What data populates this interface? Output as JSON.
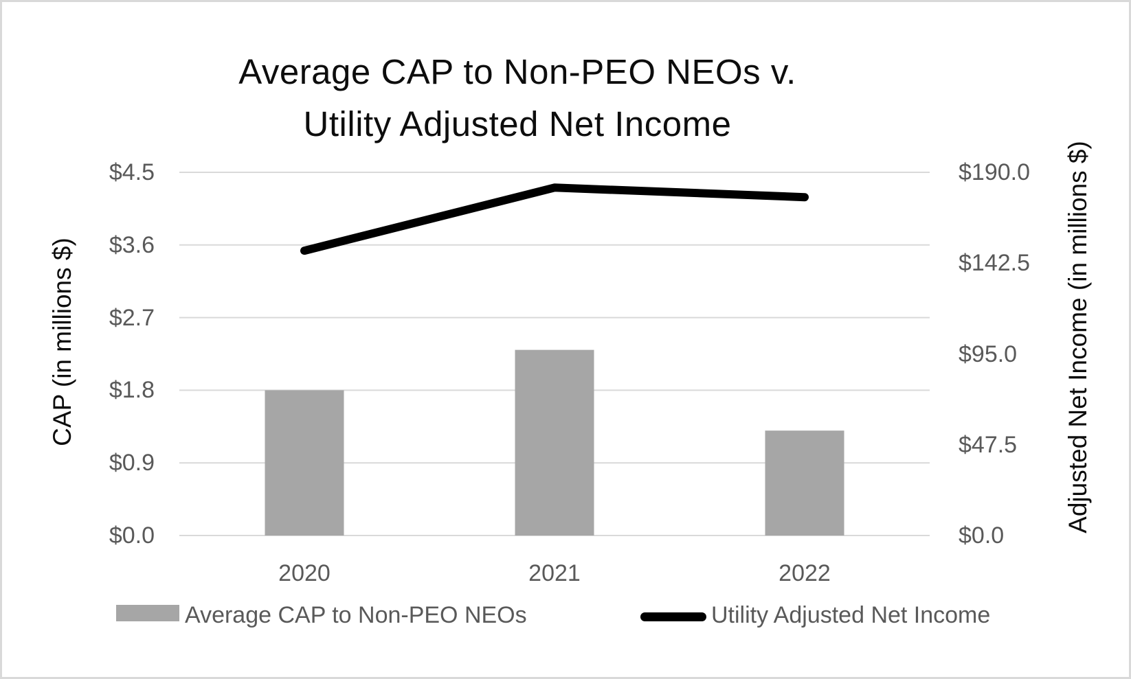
{
  "title": {
    "line1": "Average CAP to Non-PEO NEOs v.",
    "line2": "Utility Adjusted Net Income"
  },
  "chart_data": {
    "type": "bar",
    "subtype": "combo-bar-line-dual-axis",
    "title": "Average CAP to Non-PEO NEOs v. Utility Adjusted Net Income",
    "categories": [
      "2020",
      "2021",
      "2022"
    ],
    "series": [
      {
        "name": "Average CAP to Non-PEO NEOs",
        "type": "bar",
        "axis": "left",
        "values": [
          1.8,
          2.3,
          1.3
        ]
      },
      {
        "name": "Utility Adjusted Net Income",
        "type": "line",
        "axis": "right",
        "values": [
          149.0,
          182.0,
          177.0
        ]
      }
    ],
    "left_axis": {
      "label": "CAP (in millions $)",
      "tick_labels": [
        "$0.0",
        "$0.9",
        "$1.8",
        "$2.7",
        "$3.6",
        "$4.5"
      ],
      "tick_values": [
        0,
        0.9,
        1.8,
        2.7,
        3.6,
        4.5
      ],
      "range": [
        0,
        4.5
      ]
    },
    "right_axis": {
      "label": "Adjusted Net Income (in millions $)",
      "tick_labels": [
        "$0.0",
        "$47.5",
        "$95.0",
        "$142.5",
        "$190.0"
      ],
      "tick_values": [
        0,
        47.5,
        95,
        142.5,
        190
      ],
      "range": [
        0,
        190
      ]
    },
    "grid": true,
    "legend_position": "bottom"
  },
  "legend": {
    "items": [
      {
        "label": "Average CAP to Non-PEO NEOs",
        "swatch": "gray-bar"
      },
      {
        "label": "Utility Adjusted Net Income",
        "swatch": "black-line"
      }
    ]
  },
  "colors": {
    "bar": "#a6a6a6",
    "line": "#000000",
    "gridline": "#d9d9d9",
    "tick_text": "#595959",
    "axis_text": "#0d0d0d",
    "background": "#ffffff",
    "border": "#d9d9d9"
  }
}
